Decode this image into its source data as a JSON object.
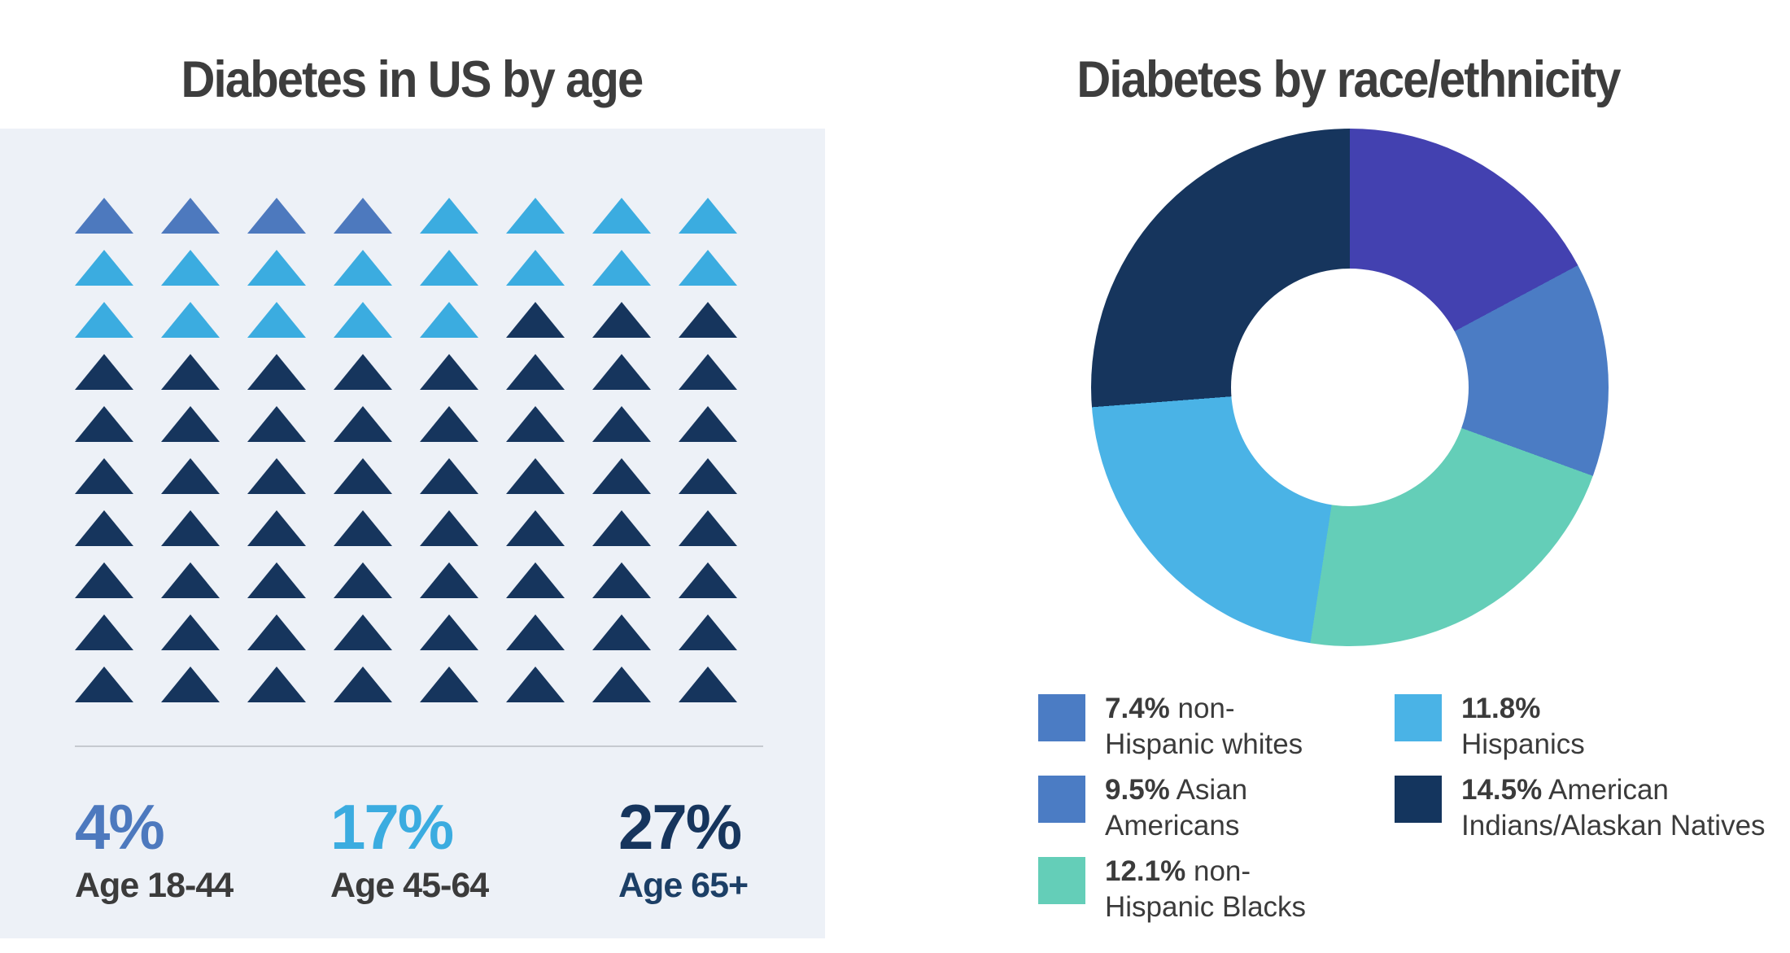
{
  "left_chart": {
    "title": "Diabetes in US by age",
    "panel_color": "#edf1f7",
    "grid": {
      "rows": 10,
      "cols": 8,
      "total_icons": 80,
      "icon": "triangle"
    },
    "groups": [
      {
        "pct": "4%",
        "label": "Age 18-44",
        "icon_count": 4,
        "color": "#4d79be",
        "label_color": "#3b3b3b"
      },
      {
        "pct": "17%",
        "label": "Age 45-64",
        "icon_count": 17,
        "color": "#3bace0",
        "label_color": "#3b3b3b"
      },
      {
        "pct": "27%",
        "label": "Age 65+",
        "icon_count": 59,
        "color": "#16355d",
        "label_color": "#1c3f66"
      }
    ]
  },
  "right_chart": {
    "title": "Diabetes by race/ethnicity",
    "donut_slices_clockwise_from_top": [
      {
        "name": "Asian Americans",
        "value": 9.5,
        "color": "#4341b0"
      },
      {
        "name": "non-Hispanic whites",
        "value": 7.4,
        "color": "#4b7cc4"
      },
      {
        "name": "non-Hispanic Blacks",
        "value": 12.1,
        "color": "#64ceb8"
      },
      {
        "name": "Hispanics",
        "value": 11.8,
        "color": "#4ab3e6"
      },
      {
        "name": "American Indians/Alaskan Natives",
        "value": 14.5,
        "color": "#16355d"
      }
    ],
    "legend": {
      "col1": [
        {
          "pct": "7.4%",
          "rest": "non-",
          "line2": "Hispanic whites",
          "color": "#4b7cc4"
        },
        {
          "pct": "9.5%",
          "rest": "Asian",
          "line2": "Americans",
          "color": "#4b7cc4"
        },
        {
          "pct": "12.1%",
          "rest": "non-",
          "line2": "Hispanic Blacks",
          "color": "#64ceb8"
        }
      ],
      "col2": [
        {
          "pct": "11.8%",
          "rest": "",
          "line2": "Hispanics",
          "color": "#4ab3e6"
        },
        {
          "pct": "14.5%",
          "rest": "American",
          "line2": "Indians/Alaskan Natives",
          "color": "#14355e"
        }
      ]
    }
  },
  "chart_data": [
    {
      "type": "bar",
      "subtype": "pictogram-waffle",
      "title": "Diabetes in US by age",
      "categories": [
        "Age 18-44",
        "Age 45-64",
        "Age 65+"
      ],
      "values": [
        4,
        17,
        27
      ],
      "unit": "percent",
      "notes": "10x8 grid of 80 triangle icons filled row-major: 4 blue, 17 light blue, remaining 59 navy"
    },
    {
      "type": "pie",
      "subtype": "donut",
      "title": "Diabetes by race/ethnicity",
      "labels": [
        "Asian Americans",
        "non-Hispanic whites",
        "non-Hispanic Blacks",
        "Hispanics",
        "American Indians/Alaskan Natives"
      ],
      "values": [
        9.5,
        7.4,
        12.1,
        11.8,
        14.5
      ],
      "colors": [
        "#4341b0",
        "#4b7cc4",
        "#64ceb8",
        "#4ab3e6",
        "#16355d"
      ],
      "order": "clockwise from 12 o'clock",
      "hole_ratio": 0.46,
      "legend_position": "bottom",
      "legend_order": [
        "7.4% non-Hispanic whites",
        "11.8% Hispanics",
        "9.5% Asian Americans",
        "14.5% American Indians/Alaskan Natives",
        "12.1% non-Hispanic Blacks"
      ]
    }
  ]
}
